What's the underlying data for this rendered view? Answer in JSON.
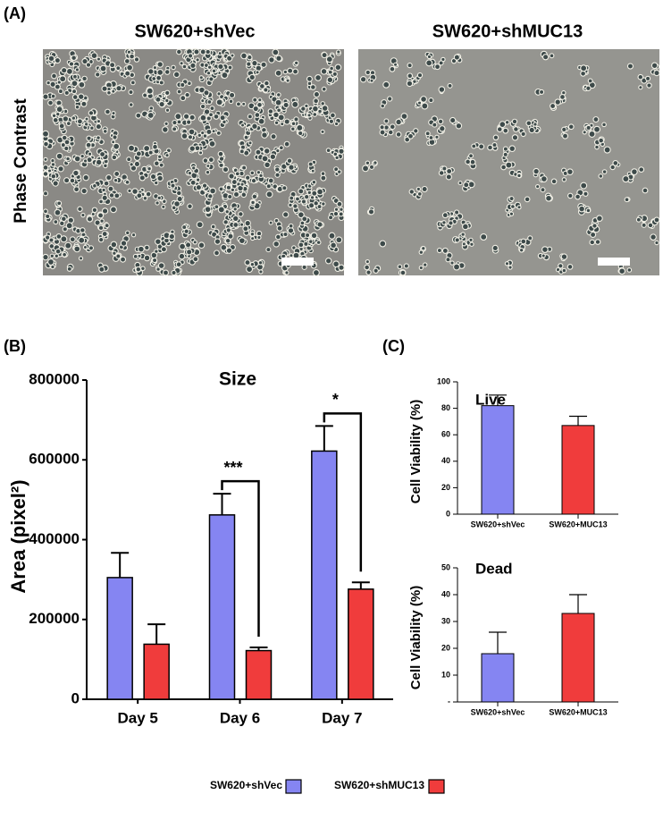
{
  "panel_a": {
    "label": "(A)",
    "titles": [
      "SW620+shVec",
      "SW620+shMUC13"
    ],
    "row_label": "Phase Contrast"
  },
  "panel_b_label": "(B)",
  "panel_c_label": "(C)",
  "chart_data": [
    {
      "type": "bar",
      "title": "Size",
      "y_label": "Area (pixel²)",
      "categories": [
        "Day 5",
        "Day 6",
        "Day 7"
      ],
      "series": [
        {
          "name": "SW620+shVec",
          "color": "#8585f2",
          "values": [
            305000,
            462000,
            622000
          ],
          "errors": [
            62000,
            53000,
            63000
          ]
        },
        {
          "name": "SW620+shMUC13",
          "color": "#f03c3c",
          "values": [
            138000,
            122000,
            276000
          ],
          "errors": [
            50000,
            8000,
            17000
          ]
        }
      ],
      "annotations": [
        "***",
        "*"
      ],
      "ylim": [
        0,
        800000
      ],
      "yticks": [
        0,
        200000,
        400000,
        600000,
        800000
      ],
      "legend": "bottom"
    },
    {
      "type": "bar",
      "title": "Live",
      "y_label": "Cell Viability (%)",
      "categories": [
        "SW620+shVec",
        "SW620+MUC13"
      ],
      "values": [
        82,
        67
      ],
      "errors": [
        8,
        7
      ],
      "colors": [
        "#8585f2",
        "#f03c3c"
      ],
      "ylim": [
        0,
        100
      ],
      "yticks": [
        0,
        20,
        40,
        60,
        80,
        100
      ]
    },
    {
      "type": "bar",
      "title": "Dead",
      "y_label": "Cell Viability (%)",
      "categories": [
        "SW620+shVec",
        "SW620+MUC13"
      ],
      "values": [
        18,
        33
      ],
      "errors": [
        8,
        7
      ],
      "colors": [
        "#8585f2",
        "#f03c3c"
      ],
      "ylim": [
        0,
        50
      ],
      "yticks": [
        {
          "value": 0,
          "label": "-"
        },
        10,
        20,
        30,
        40,
        50
      ]
    }
  ]
}
